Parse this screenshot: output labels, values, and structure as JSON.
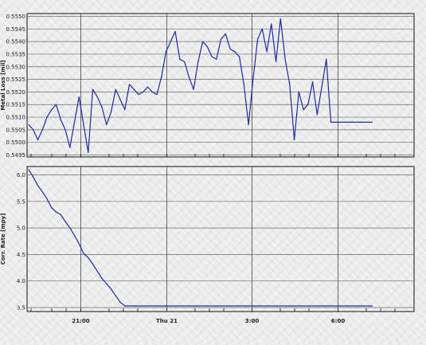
{
  "chart_data": [
    {
      "type": "line",
      "title": "",
      "xlabel": "",
      "ylabel": "Metal Loss [mil]",
      "ylim": [
        0.5495,
        0.555
      ],
      "yticks": [
        "0.5495",
        "0.5500",
        "0.5505",
        "0.5510",
        "0.5515",
        "0.5520",
        "0.5525",
        "0.5530",
        "0.5535",
        "0.5540",
        "0.5545",
        "0.5550"
      ],
      "grid": true,
      "line_color": "#1a2aa8",
      "series": [
        {
          "x": [
            "19:00",
            "19:10",
            "19:20",
            "19:30",
            "19:40",
            "19:50",
            "20:00",
            "20:10",
            "20:20",
            "20:30",
            "20:40",
            "20:50",
            "21:00",
            "21:10",
            "21:20",
            "21:30",
            "21:40",
            "21:50",
            "22:00",
            "22:10",
            "22:20",
            "22:30",
            "22:40",
            "22:50",
            "23:00",
            "23:10",
            "23:20",
            "23:30",
            "23:40",
            "23:50",
            "00:00",
            "00:10",
            "00:20",
            "00:30",
            "00:40",
            "00:50",
            "01:00",
            "01:10",
            "01:20",
            "01:30",
            "01:40",
            "01:50",
            "02:00",
            "02:10",
            "02:20",
            "02:30",
            "02:40",
            "02:50",
            "03:00",
            "03:10",
            "03:20",
            "03:30",
            "03:40",
            "03:50",
            "04:00",
            "04:10",
            "04:20",
            "04:30",
            "04:40",
            "04:50",
            "05:00",
            "05:10",
            "05:20",
            "05:30",
            "05:40",
            "05:50",
            "06:00",
            "06:10",
            "06:20",
            "06:30",
            "06:40",
            "06:50",
            "07:00",
            "07:10",
            "07:20",
            "07:30"
          ],
          "values": [
            0.5507,
            0.5505,
            0.5501,
            0.5505,
            0.551,
            0.5513,
            0.5515,
            0.5509,
            0.5505,
            0.5498,
            0.5508,
            0.5518,
            0.5507,
            0.5496,
            0.5521,
            0.5518,
            0.5514,
            0.5507,
            0.5512,
            0.5521,
            0.5517,
            0.5513,
            0.5523,
            0.5521,
            0.5519,
            0.552,
            0.5522,
            0.552,
            0.5519,
            0.5526,
            0.5536,
            0.554,
            0.5544,
            0.5533,
            0.5532,
            0.5526,
            0.5521,
            0.5532,
            0.554,
            0.5538,
            0.5534,
            0.5533,
            0.5541,
            0.5543,
            0.5537,
            0.5536,
            0.5534,
            0.5523,
            0.5507,
            0.5525,
            0.5541,
            0.5545,
            0.5536,
            0.5547,
            0.5532,
            0.5549,
            0.5533,
            0.5523,
            0.5501,
            0.552,
            0.5513,
            0.5515,
            0.5524,
            0.5511,
            0.5522,
            0.5533,
            0.5508,
            0.5508,
            0.5508,
            0.5508,
            0.5508,
            0.5508,
            0.5508,
            0.5508,
            0.5508,
            0.5508
          ]
        }
      ]
    },
    {
      "type": "line",
      "title": "",
      "xlabel": "",
      "ylabel": "Corr. Rate [mpy]",
      "ylim": [
        3.4,
        6.2
      ],
      "yticks": [
        "3.5",
        "4.0",
        "4.5",
        "5.0",
        "5.5",
        "6.0"
      ],
      "xticks": [
        "21:00",
        "Thu 21",
        "3:00",
        "6:00"
      ],
      "grid": true,
      "line_color": "#1a2aa8",
      "series": [
        {
          "x": [
            "19:00",
            "19:10",
            "19:20",
            "19:30",
            "19:40",
            "19:50",
            "20:00",
            "20:10",
            "20:20",
            "20:30",
            "20:40",
            "20:50",
            "21:00",
            "21:10",
            "21:20",
            "21:30",
            "21:40",
            "21:50",
            "22:00",
            "22:10",
            "22:20",
            "22:30",
            "22:40",
            "22:50",
            "23:00",
            "07:30"
          ],
          "values": [
            6.1,
            5.96,
            5.8,
            5.68,
            5.55,
            5.38,
            5.3,
            5.25,
            5.12,
            5.0,
            4.86,
            4.7,
            4.52,
            4.44,
            4.32,
            4.18,
            4.05,
            3.95,
            3.85,
            3.72,
            3.6,
            3.53,
            3.53,
            3.53,
            3.53,
            3.53
          ]
        }
      ]
    }
  ]
}
